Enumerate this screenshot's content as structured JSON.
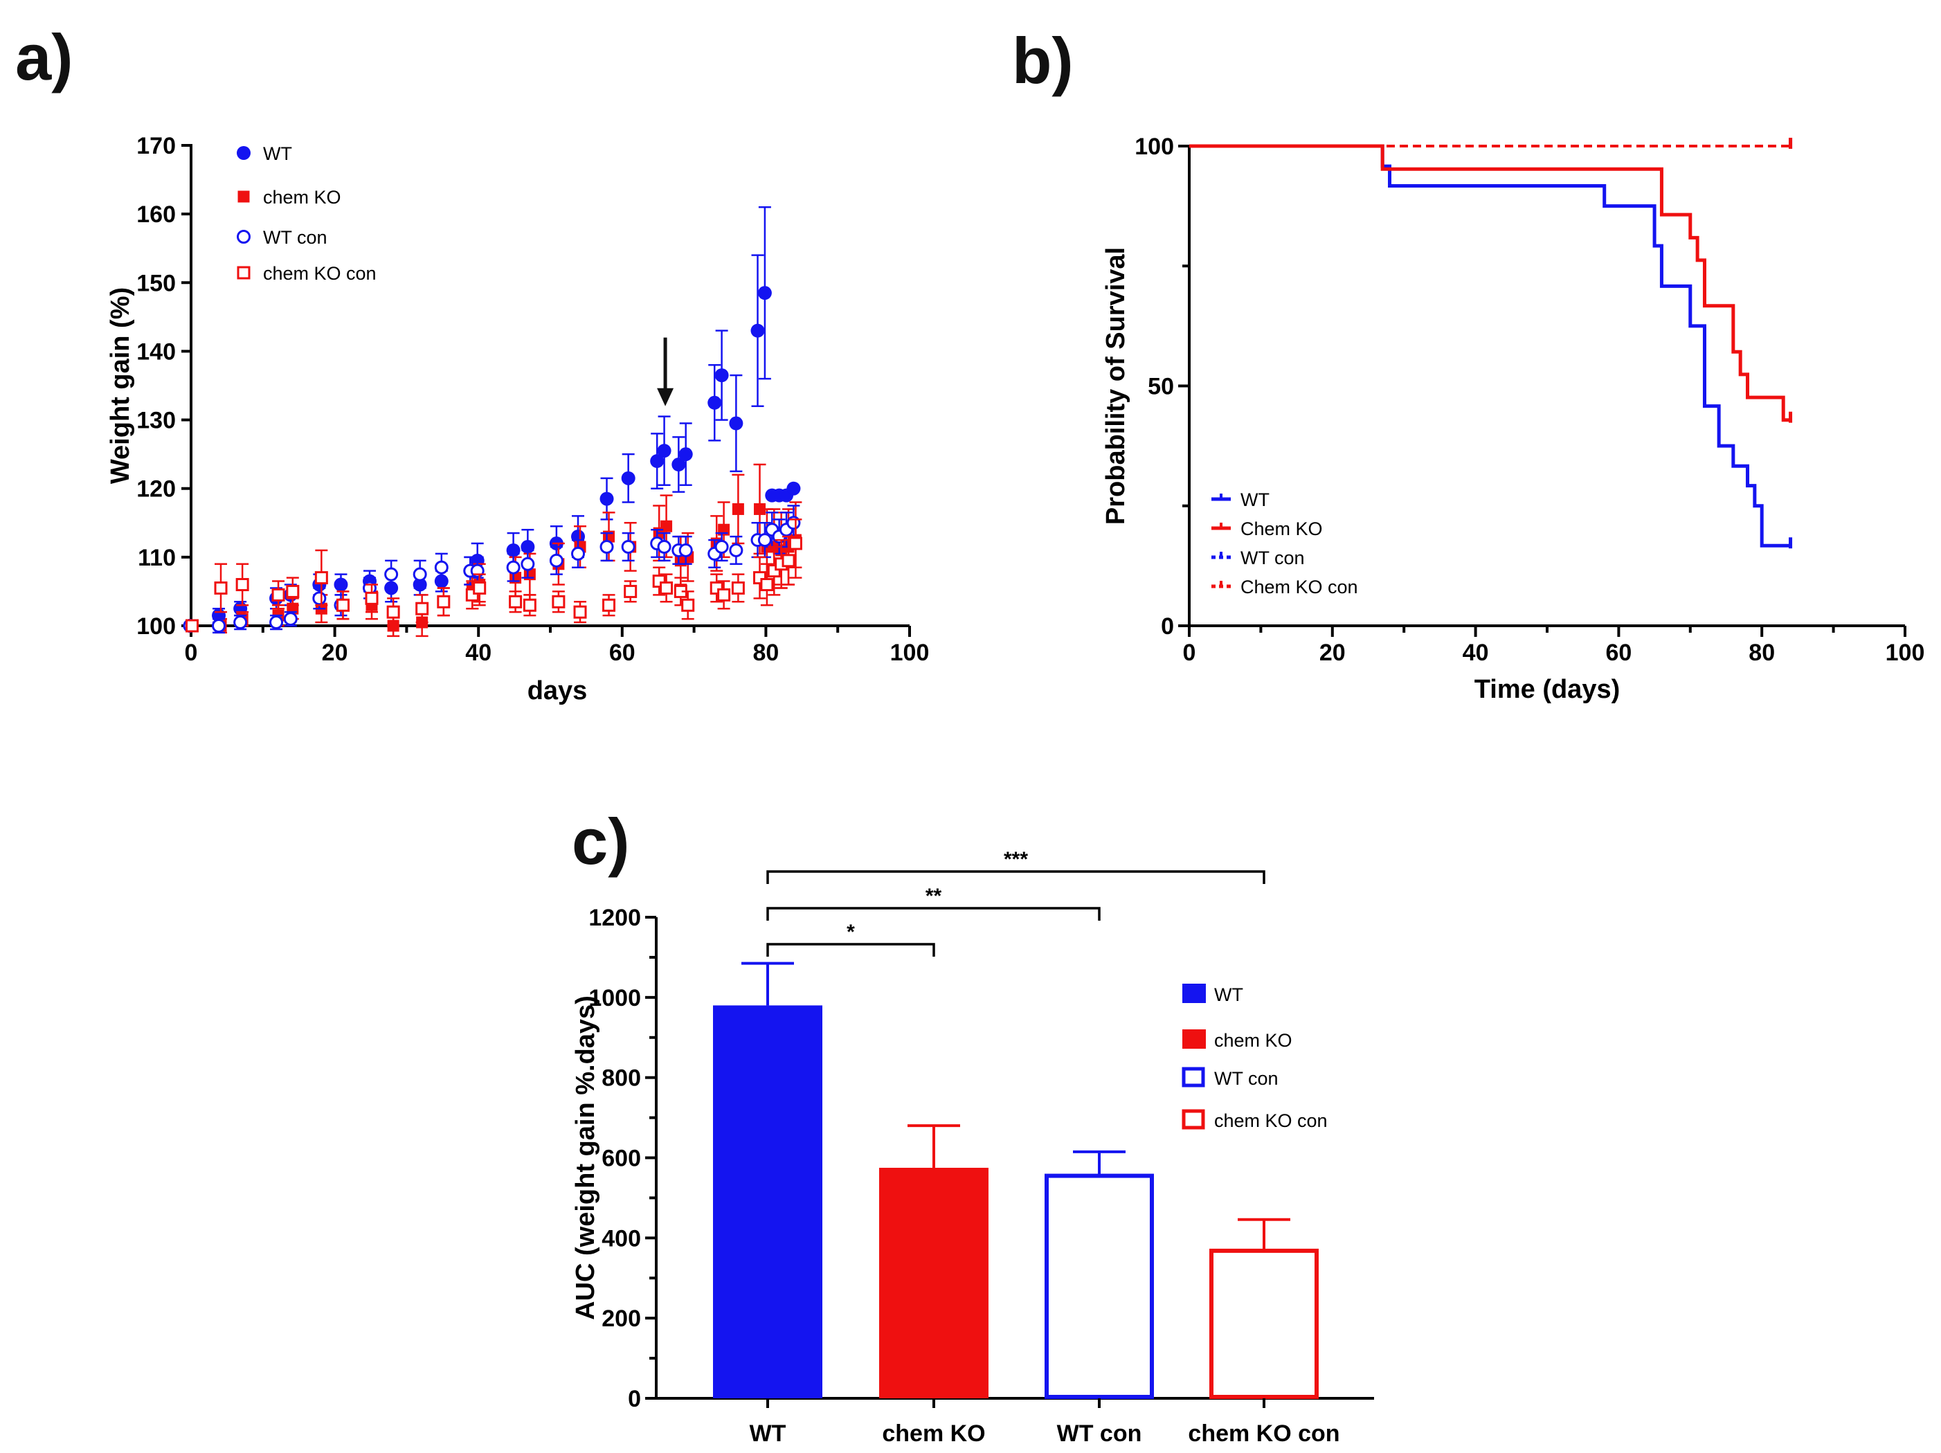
{
  "colors": {
    "blue": "#1414f0",
    "red": "#ef1010",
    "black": "#000000"
  },
  "panels": {
    "a": "a)",
    "b": "b)",
    "c": "c)"
  },
  "chart_data": [
    {
      "id": "a",
      "type": "scatter",
      "xlabel": "days",
      "ylabel": "Weight gain (%)",
      "xlim": [
        0,
        100
      ],
      "ylim": [
        100,
        170
      ],
      "xticks": [
        0,
        20,
        40,
        60,
        80,
        100
      ],
      "yticks": [
        100,
        110,
        120,
        130,
        140,
        150,
        160,
        170
      ],
      "annotation": {
        "type": "arrow",
        "x": 66,
        "y_from": 142,
        "y_to": 132
      },
      "legend_position": "top-left",
      "series": [
        {
          "name": "WT",
          "marker": "circle",
          "filled": true,
          "color": "#1414f0",
          "points": [
            [
              0,
              100
            ],
            [
              4,
              101.5
            ],
            [
              7,
              102.5
            ],
            [
              12,
              104
            ],
            [
              14,
              104.5
            ],
            [
              18,
              106
            ],
            [
              21,
              106
            ],
            [
              25,
              106.5
            ],
            [
              28,
              105.5
            ],
            [
              32,
              106
            ],
            [
              35,
              106.5
            ],
            [
              39,
              108
            ],
            [
              40,
              109.5
            ],
            [
              45,
              111
            ],
            [
              47,
              111.5
            ],
            [
              51,
              112
            ],
            [
              54,
              113
            ],
            [
              58,
              118.5
            ],
            [
              61,
              121.5
            ],
            [
              65,
              124
            ],
            [
              66,
              125.5
            ],
            [
              68,
              123.5
            ],
            [
              69,
              125
            ],
            [
              73,
              132.5
            ],
            [
              74,
              136.5
            ],
            [
              76,
              129.5
            ],
            [
              79,
              143
            ],
            [
              80,
              148.5
            ],
            [
              81,
              119
            ],
            [
              82,
              119
            ],
            [
              83,
              119
            ],
            [
              84,
              120
            ]
          ],
          "errors": [
            0,
            1,
            1,
            1.5,
            1.5,
            1.5,
            1.5,
            1.5,
            2,
            1.5,
            1.5,
            2,
            2.5,
            2.5,
            2.5,
            2.5,
            3,
            3,
            3.5,
            4,
            5,
            4,
            4.5,
            5.5,
            6.5,
            7,
            11,
            12.5,
            0,
            0,
            0,
            0
          ]
        },
        {
          "name": "chem KO",
          "marker": "square",
          "filled": true,
          "color": "#ef1010",
          "points": [
            [
              0,
              100
            ],
            [
              4,
              100
            ],
            [
              7,
              101
            ],
            [
              12,
              101.5
            ],
            [
              14,
              102.5
            ],
            [
              18,
              102.5
            ],
            [
              21,
              103
            ],
            [
              25,
              103
            ],
            [
              28,
              100
            ],
            [
              32,
              100.5
            ],
            [
              35,
              103.5
            ],
            [
              39,
              105.5
            ],
            [
              40,
              106
            ],
            [
              45,
              107
            ],
            [
              47,
              107.5
            ],
            [
              51,
              109
            ],
            [
              54,
              111.5
            ],
            [
              58,
              113
            ],
            [
              61,
              111.5
            ],
            [
              65,
              113.5
            ],
            [
              66,
              114.5
            ],
            [
              68,
              109.5
            ],
            [
              69,
              110
            ],
            [
              73,
              112
            ],
            [
              74,
              114
            ],
            [
              76,
              117
            ],
            [
              79,
              117
            ],
            [
              80,
              111.5
            ],
            [
              81,
              111.5
            ],
            [
              82,
              111
            ],
            [
              83,
              111.5
            ],
            [
              84,
              112.5
            ]
          ],
          "errors": [
            0,
            1,
            1,
            1.5,
            1.5,
            2,
            2,
            2,
            1.5,
            2,
            2,
            3,
            3,
            3,
            3,
            3,
            3,
            3.5,
            3.5,
            4,
            4.5,
            3.5,
            3.5,
            4,
            4,
            5,
            6.5,
            5.5,
            5.5,
            5.5,
            5.5,
            5.5
          ]
        },
        {
          "name": "WT con",
          "marker": "circle",
          "filled": false,
          "color": "#1414f0",
          "points": [
            [
              0,
              100
            ],
            [
              4,
              100
            ],
            [
              7,
              100.5
            ],
            [
              12,
              100.5
            ],
            [
              14,
              101
            ],
            [
              18,
              104
            ],
            [
              21,
              103
            ],
            [
              25,
              105.5
            ],
            [
              28,
              107.5
            ],
            [
              32,
              107.5
            ],
            [
              35,
              108.5
            ],
            [
              39,
              108
            ],
            [
              40,
              108
            ],
            [
              45,
              108.5
            ],
            [
              47,
              109
            ],
            [
              51,
              109.5
            ],
            [
              54,
              110.5
            ],
            [
              58,
              111.5
            ],
            [
              61,
              111.5
            ],
            [
              65,
              112
            ],
            [
              66,
              111.5
            ],
            [
              68,
              111
            ],
            [
              69,
              111
            ],
            [
              73,
              110.5
            ],
            [
              74,
              111.5
            ],
            [
              76,
              111
            ],
            [
              79,
              112.5
            ],
            [
              80,
              112.5
            ],
            [
              81,
              114
            ],
            [
              82,
              113
            ],
            [
              83,
              114
            ],
            [
              84,
              115
            ]
          ],
          "errors": [
            0,
            1,
            1,
            1,
            1,
            1.5,
            1.5,
            1.5,
            2,
            2,
            2,
            2,
            2,
            2,
            2,
            2,
            2,
            2,
            2,
            2,
            2,
            2,
            2,
            2,
            2,
            2,
            2.5,
            2.5,
            2.5,
            2.5,
            2.5,
            2.5
          ]
        },
        {
          "name": "chem KO con",
          "marker": "square",
          "filled": false,
          "color": "#ef1010",
          "points": [
            [
              0,
              100
            ],
            [
              4,
              105.5
            ],
            [
              7,
              106
            ],
            [
              12,
              104.5
            ],
            [
              14,
              105
            ],
            [
              18,
              107
            ],
            [
              21,
              103
            ],
            [
              25,
              104
            ],
            [
              28,
              102
            ],
            [
              32,
              102.5
            ],
            [
              35,
              103.5
            ],
            [
              39,
              104.5
            ],
            [
              40,
              105.5
            ],
            [
              45,
              103.5
            ],
            [
              47,
              103
            ],
            [
              51,
              103.5
            ],
            [
              54,
              102
            ],
            [
              58,
              103
            ],
            [
              61,
              105
            ],
            [
              65,
              106.5
            ],
            [
              66,
              105.5
            ],
            [
              68,
              105
            ],
            [
              69,
              103
            ],
            [
              73,
              105.5
            ],
            [
              74,
              104.5
            ],
            [
              76,
              105.5
            ],
            [
              79,
              107
            ],
            [
              80,
              106
            ],
            [
              81,
              108
            ],
            [
              82,
              109
            ],
            [
              83,
              109.5
            ],
            [
              84,
              112
            ]
          ],
          "errors": [
            0,
            3.5,
            3,
            2,
            2,
            4,
            2,
            2,
            2,
            2,
            2,
            2,
            2,
            1.5,
            1.5,
            1.5,
            1.5,
            1.5,
            1.5,
            2,
            2,
            2,
            2,
            2,
            2,
            2,
            3,
            3,
            3.5,
            3.5,
            3.5,
            3.5
          ]
        }
      ]
    },
    {
      "id": "b",
      "type": "line",
      "xlabel": "Time (days)",
      "ylabel": "Probability of Survival",
      "xlim": [
        0,
        100
      ],
      "ylim": [
        0,
        100
      ],
      "xticks": [
        0,
        20,
        40,
        60,
        80,
        100
      ],
      "yticks": [
        0,
        50,
        100
      ],
      "legend_position": "bottom-left",
      "series": [
        {
          "name": "WT",
          "color": "#1414f0",
          "style": "step",
          "dashed": false,
          "x": [
            0,
            27,
            28,
            58,
            65,
            66,
            70,
            72,
            74,
            76,
            78,
            79,
            80,
            84
          ],
          "y": [
            100,
            95.8,
            91.7,
            87.5,
            79.2,
            70.8,
            62.5,
            45.8,
            37.5,
            33.3,
            29.2,
            25,
            16.7,
            16.7
          ]
        },
        {
          "name": "Chem KO",
          "color": "#ef1010",
          "style": "step",
          "dashed": false,
          "x": [
            0,
            27,
            66,
            70,
            71,
            72,
            76,
            77,
            78,
            79,
            83,
            84
          ],
          "y": [
            100,
            95.2,
            85.7,
            80.9,
            76.2,
            66.7,
            57.1,
            52.4,
            47.6,
            47.6,
            42.9,
            42.9
          ]
        },
        {
          "name": "WT con",
          "color": "#1414f0",
          "style": "step",
          "dashed": true,
          "x": [
            0,
            84
          ],
          "y": [
            100,
            100
          ]
        },
        {
          "name": "Chem KO con",
          "color": "#ef1010",
          "style": "step",
          "dashed": true,
          "x": [
            0,
            84
          ],
          "y": [
            100,
            100
          ]
        }
      ]
    },
    {
      "id": "c",
      "type": "bar",
      "ylabel": "AUC (weight gain %.days)",
      "ylim": [
        0,
        1200
      ],
      "yticks": [
        0,
        200,
        400,
        600,
        800,
        1000,
        1200
      ],
      "categories": [
        "WT",
        "chem KO",
        "WT con",
        "chem KO con"
      ],
      "values": [
        980,
        575,
        555,
        368
      ],
      "errors": [
        105,
        105,
        60,
        78
      ],
      "fills": [
        "solid",
        "solid",
        "outline",
        "outline"
      ],
      "colors": [
        "#1414f0",
        "#ef1010",
        "#1414f0",
        "#ef1010"
      ],
      "legend": [
        "WT",
        "chem KO",
        "WT con",
        "chem KO con"
      ],
      "legend_position": "right",
      "significance": [
        {
          "from": 0,
          "to": 1,
          "label": "*"
        },
        {
          "from": 0,
          "to": 2,
          "label": "**"
        },
        {
          "from": 0,
          "to": 3,
          "label": "***"
        }
      ]
    }
  ]
}
